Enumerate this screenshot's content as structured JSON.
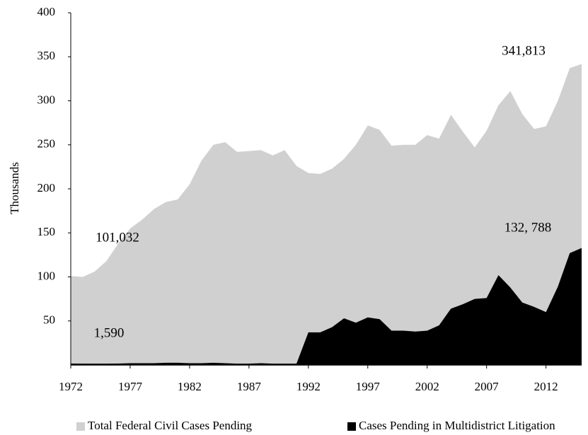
{
  "chart_data": {
    "type": "area",
    "y_label": "Thousands",
    "x": [
      1972,
      1973,
      1974,
      1975,
      1976,
      1977,
      1978,
      1979,
      1980,
      1981,
      1982,
      1983,
      1984,
      1985,
      1986,
      1987,
      1988,
      1989,
      1990,
      1991,
      1992,
      1993,
      1994,
      1995,
      1996,
      1997,
      1998,
      1999,
      2000,
      2001,
      2002,
      2003,
      2004,
      2005,
      2006,
      2007,
      2008,
      2009,
      2010,
      2011,
      2012,
      2013,
      2014,
      2015
    ],
    "xlim": [
      1972,
      2015
    ],
    "xticks": [
      1972,
      1977,
      1982,
      1987,
      1992,
      1997,
      2002,
      2007,
      2012
    ],
    "ylim": [
      0,
      400
    ],
    "yticks": [
      50,
      100,
      150,
      200,
      250,
      300,
      350,
      400
    ],
    "grid": false,
    "legend": "bottom",
    "series": [
      {
        "name": "Total Federal Civil Cases Pending",
        "color": "#d0d0d0",
        "values": [
          101.032,
          100,
          106,
          118,
          138,
          155,
          165,
          177,
          185,
          188,
          205,
          232,
          250,
          253,
          242,
          243,
          244,
          238,
          244,
          226,
          218,
          217,
          223,
          234,
          250,
          272,
          267,
          249,
          250,
          250,
          261,
          257,
          284,
          265,
          247,
          266,
          295,
          311,
          285,
          268,
          271,
          300,
          337,
          341.813
        ]
      },
      {
        "name": "Cases Pending in Multidistrict Litigation",
        "color": "#000000",
        "values": [
          1.59,
          1.5,
          1.5,
          1.5,
          1.6,
          2,
          2,
          2,
          2.5,
          2.5,
          2,
          2,
          2.5,
          2,
          1.5,
          1.5,
          2,
          1.5,
          1.5,
          1.5,
          37,
          37,
          43,
          53,
          48,
          54,
          52,
          39,
          39,
          38,
          39,
          45,
          64,
          69,
          75,
          76,
          102,
          88,
          71,
          66,
          60,
          89,
          127,
          132.788
        ]
      }
    ],
    "annotations": [
      "341,813",
      "101,032",
      "1,590",
      "132, 788"
    ]
  }
}
